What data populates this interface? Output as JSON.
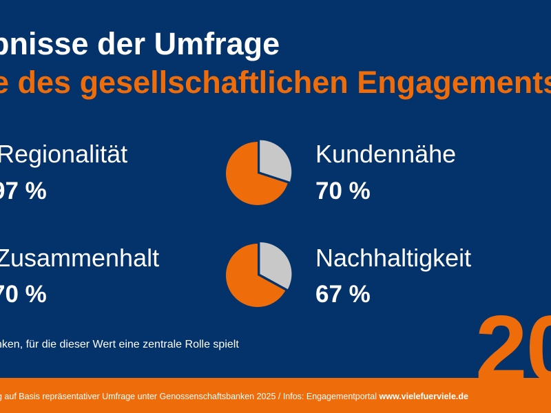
{
  "title": {
    "line1": "bnisse der Umfrage",
    "line2": "e des gesellschaftlichen Engagements"
  },
  "colors": {
    "background": "#04336b",
    "accent": "#ef6c0a",
    "pie_rest": "#c8c8c8"
  },
  "items": [
    {
      "label": "Regionalität",
      "value": "97 %"
    },
    {
      "label": "Kundennähe",
      "value": "70 %",
      "pie_percent": 70
    },
    {
      "label": "Zusammenhalt",
      "value": "70 %"
    },
    {
      "label": "Nachhaltigkeit",
      "value": "67 %",
      "pie_percent": 67
    }
  ],
  "note": "nken, für die dieser Wert eine zentrale Rolle spielt",
  "big_number": "20",
  "footer": {
    "text": "g auf Basis repräsentativer Umfrage unter Genossenschaftsbanken 2025 / Infos: Engagementportal ",
    "link": "www.vielefuerviele.de"
  }
}
